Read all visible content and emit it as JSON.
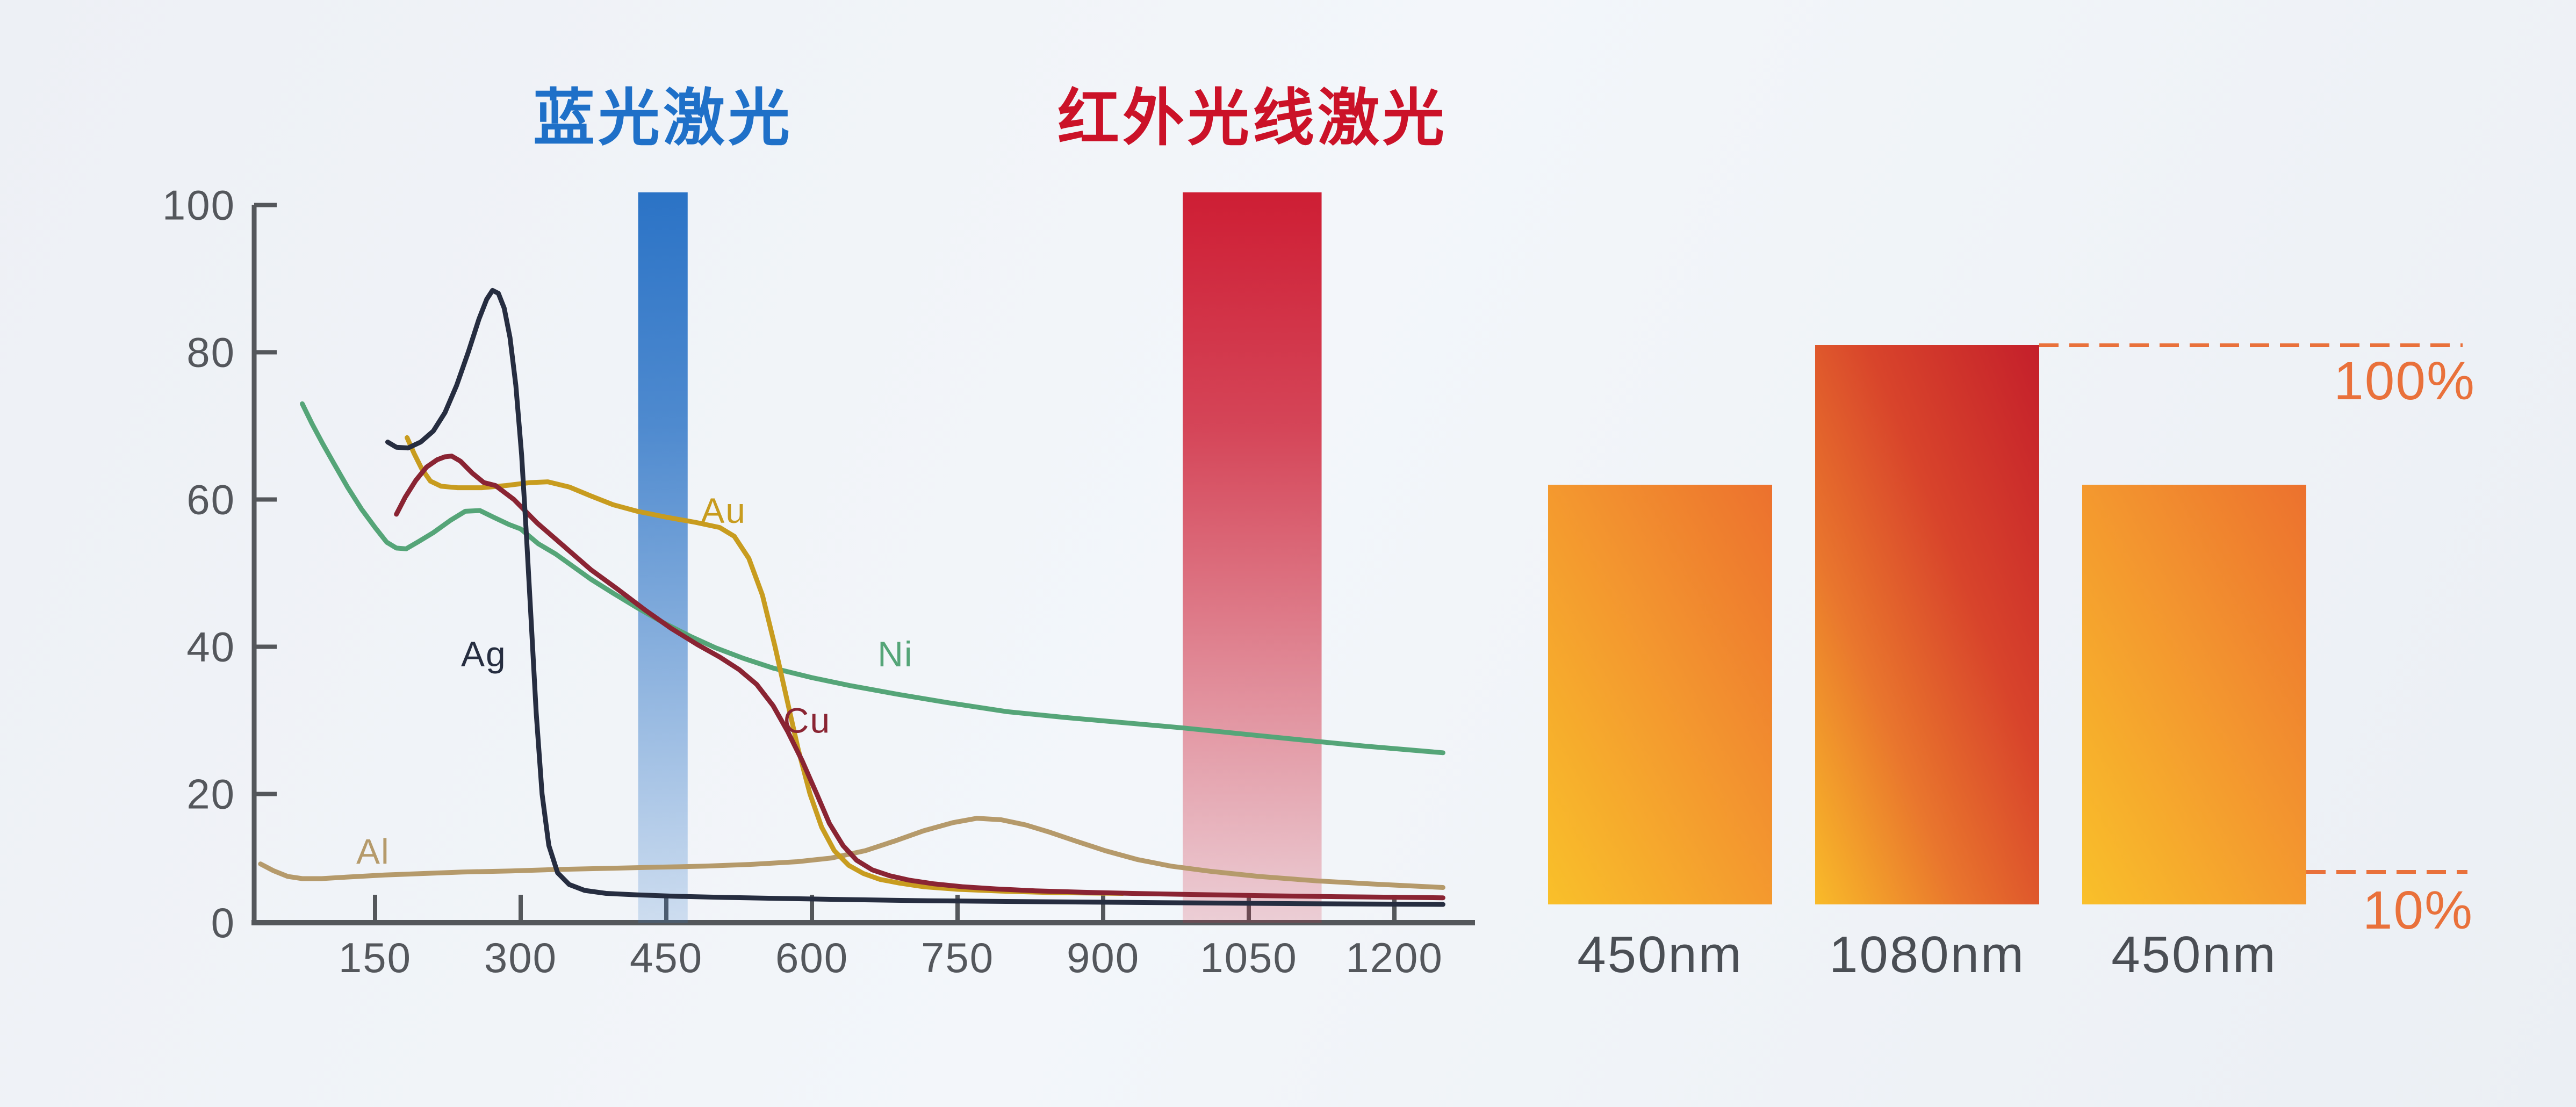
{
  "page": {
    "background_start": "#edf0f5",
    "background_end": "#f3f6fa",
    "axis_color": "#54575b",
    "tick_label_color": "#54575c",
    "dash_color": "#e9713b"
  },
  "titles": {
    "blue_laser": {
      "text": "蓝光激光",
      "color": "#1f70c8"
    },
    "infrared_laser": {
      "text": "红外光线激光",
      "color": "#cb1228"
    }
  },
  "chart_data": [
    {
      "id": "metal-absorption-vs-wavelength",
      "type": "line",
      "x_ticks": [
        150,
        300,
        450,
        600,
        750,
        900,
        1050,
        1200
      ],
      "y_ticks": [
        0,
        20,
        40,
        60,
        80,
        100
      ],
      "xlim": [
        25,
        1285
      ],
      "ylim": [
        0,
        100
      ],
      "grid": false,
      "legend_position": "inline-labels",
      "bands": [
        {
          "name": "blue-laser",
          "label": "蓝光激光",
          "nm_from": 421,
          "nm_to": 472,
          "color_rgb": "43,115,198"
        },
        {
          "name": "infrared-laser",
          "label": "红外光线激光",
          "nm_from": 982,
          "nm_to": 1125,
          "color_rgb": "206,30,52"
        }
      ],
      "series": [
        {
          "name": "Al",
          "color": "#b59a6b",
          "label_at": [
            148,
            12.2
          ],
          "points": [
            [
              32,
              10.5
            ],
            [
              45,
              9.6
            ],
            [
              60,
              8.8
            ],
            [
              75,
              8.5
            ],
            [
              95,
              8.5
            ],
            [
              120,
              8.7
            ],
            [
              160,
              9.0
            ],
            [
              200,
              9.2
            ],
            [
              240,
              9.4
            ],
            [
              290,
              9.55
            ],
            [
              340,
              9.75
            ],
            [
              390,
              9.9
            ],
            [
              440,
              10.05
            ],
            [
              490,
              10.2
            ],
            [
              540,
              10.45
            ],
            [
              585,
              10.8
            ],
            [
              620,
              11.3
            ],
            [
              655,
              12.3
            ],
            [
              685,
              13.6
            ],
            [
              715,
              15.0
            ],
            [
              745,
              16.1
            ],
            [
              770,
              16.7
            ],
            [
              795,
              16.5
            ],
            [
              820,
              15.8
            ],
            [
              845,
              14.8
            ],
            [
              872,
              13.6
            ],
            [
              902,
              12.3
            ],
            [
              935,
              11.1
            ],
            [
              970,
              10.2
            ],
            [
              1010,
              9.5
            ],
            [
              1060,
              8.8
            ],
            [
              1120,
              8.2
            ],
            [
              1180,
              7.75
            ],
            [
              1250,
              7.3
            ]
          ]
        },
        {
          "name": "Ni",
          "color": "#55a578",
          "label_at": [
            686,
            39
          ],
          "points": [
            [
              75,
              73
            ],
            [
              85,
              70.3
            ],
            [
              96,
              67.6
            ],
            [
              108,
              64.8
            ],
            [
              122,
              61.6
            ],
            [
              136,
              58.7
            ],
            [
              150,
              56.2
            ],
            [
              162,
              54.2
            ],
            [
              172,
              53.4
            ],
            [
              182,
              53.3
            ],
            [
              195,
              54.3
            ],
            [
              210,
              55.5
            ],
            [
              228,
              57.2
            ],
            [
              243,
              58.4
            ],
            [
              258,
              58.5
            ],
            [
              272,
              57.6
            ],
            [
              288,
              56.6
            ],
            [
              300,
              56.0
            ],
            [
              318,
              54.0
            ],
            [
              336,
              52.6
            ],
            [
              355,
              50.8
            ],
            [
              372,
              49.2
            ],
            [
              395,
              47.3
            ],
            [
              420,
              45.3
            ],
            [
              448,
              43.2
            ],
            [
              475,
              41.4
            ],
            [
              500,
              39.9
            ],
            [
              530,
              38.4
            ],
            [
              560,
              37.1
            ],
            [
              600,
              35.8
            ],
            [
              640,
              34.7
            ],
            [
              690,
              33.5
            ],
            [
              740,
              32.4
            ],
            [
              800,
              31.2
            ],
            [
              860,
              30.4
            ],
            [
              920,
              29.7
            ],
            [
              980,
              29.0
            ],
            [
              1040,
              28.2
            ],
            [
              1100,
              27.4
            ],
            [
              1170,
              26.5
            ],
            [
              1250,
              25.6
            ]
          ]
        },
        {
          "name": "Au",
          "color": "#c89c1f",
          "label_at": [
            509,
            58.5
          ],
          "points": [
            [
              183,
              68.4
            ],
            [
              190,
              66.3
            ],
            [
              198,
              64.2
            ],
            [
              207,
              62.5
            ],
            [
              218,
              61.8
            ],
            [
              235,
              61.6
            ],
            [
              260,
              61.6
            ],
            [
              285,
              61.9
            ],
            [
              310,
              62.3
            ],
            [
              328,
              62.4
            ],
            [
              350,
              61.7
            ],
            [
              372,
              60.5
            ],
            [
              395,
              59.3
            ],
            [
              420,
              58.4
            ],
            [
              450,
              57.6
            ],
            [
              480,
              56.9
            ],
            [
              505,
              56.2
            ],
            [
              520,
              55.0
            ],
            [
              535,
              52.0
            ],
            [
              549,
              47.0
            ],
            [
              562,
              40.0
            ],
            [
              574,
              33.0
            ],
            [
              586,
              26.0
            ],
            [
              598,
              20.0
            ],
            [
              610,
              15.5
            ],
            [
              623,
              12.3
            ],
            [
              638,
              10.3
            ],
            [
              653,
              9.2
            ],
            [
              670,
              8.4
            ],
            [
              690,
              7.9
            ],
            [
              715,
              7.4
            ],
            [
              750,
              7.05
            ],
            [
              795,
              6.8
            ],
            [
              850,
              6.6
            ],
            [
              920,
              6.5
            ]
          ]
        },
        {
          "name": "Cu",
          "color": "#8a2433",
          "label_at": [
            595,
            30
          ],
          "points": [
            [
              172,
              58
            ],
            [
              181,
              60.3
            ],
            [
              192,
              62.6
            ],
            [
              203,
              64.4
            ],
            [
              214,
              65.4
            ],
            [
              222,
              65.8
            ],
            [
              229,
              65.9
            ],
            [
              238,
              65.2
            ],
            [
              250,
              63.6
            ],
            [
              262,
              62.3
            ],
            [
              274,
              61.9
            ],
            [
              293,
              60.0
            ],
            [
              317,
              56.8
            ],
            [
              345,
              53.6
            ],
            [
              372,
              50.5
            ],
            [
              400,
              47.8
            ],
            [
              428,
              45.0
            ],
            [
              455,
              42.5
            ],
            [
              482,
              40.3
            ],
            [
              505,
              38.6
            ],
            [
              525,
              36.9
            ],
            [
              543,
              34.9
            ],
            [
              560,
              32.0
            ],
            [
              575,
              28.5
            ],
            [
              590,
              24.5
            ],
            [
              605,
              20.0
            ],
            [
              618,
              16.0
            ],
            [
              632,
              13.0
            ],
            [
              646,
              11.0
            ],
            [
              662,
              9.7
            ],
            [
              680,
              8.9
            ],
            [
              700,
              8.3
            ],
            [
              725,
              7.8
            ],
            [
              755,
              7.4
            ],
            [
              790,
              7.1
            ],
            [
              830,
              6.85
            ],
            [
              880,
              6.65
            ],
            [
              930,
              6.5
            ],
            [
              990,
              6.35
            ],
            [
              1060,
              6.2
            ],
            [
              1140,
              6.05
            ],
            [
              1250,
              5.9
            ]
          ]
        },
        {
          "name": "Ag",
          "color": "#262d40",
          "label_at": [
            262,
            39
          ],
          "points": [
            [
              163,
              67.8
            ],
            [
              172,
              67.1
            ],
            [
              184,
              67.0
            ],
            [
              197,
              67.8
            ],
            [
              210,
              69.3
            ],
            [
              222,
              71.8
            ],
            [
              234,
              75.5
            ],
            [
              246,
              80.0
            ],
            [
              257,
              84.5
            ],
            [
              265,
              87.2
            ],
            [
              271,
              88.4
            ],
            [
              277,
              88.0
            ],
            [
              283,
              86.0
            ],
            [
              289,
              82.0
            ],
            [
              295,
              75.5
            ],
            [
              301,
              66.0
            ],
            [
              306,
              55.0
            ],
            [
              311,
              43.0
            ],
            [
              316,
              31.0
            ],
            [
              322,
              20.0
            ],
            [
              329,
              13.0
            ],
            [
              338,
              9.3
            ],
            [
              350,
              7.7
            ],
            [
              366,
              6.9
            ],
            [
              388,
              6.5
            ],
            [
              420,
              6.3
            ],
            [
              460,
              6.1
            ],
            [
              510,
              5.95
            ],
            [
              570,
              5.8
            ],
            [
              640,
              5.65
            ],
            [
              720,
              5.5
            ],
            [
              800,
              5.4
            ],
            [
              900,
              5.3
            ],
            [
              1000,
              5.2
            ],
            [
              1100,
              5.1
            ],
            [
              1250,
              5.0
            ]
          ]
        }
      ]
    },
    {
      "id": "relative-absorption-bars",
      "type": "bar",
      "categories": [
        "450nm",
        "1080nm",
        "450nm"
      ],
      "values": [
        75,
        100,
        75
      ],
      "ylim": [
        0,
        100
      ],
      "bar_styles": [
        "orange",
        "red",
        "orange"
      ],
      "reference_lines": [
        {
          "label": "100%",
          "value": 100
        },
        {
          "label": "10%",
          "value": 10
        }
      ]
    }
  ]
}
